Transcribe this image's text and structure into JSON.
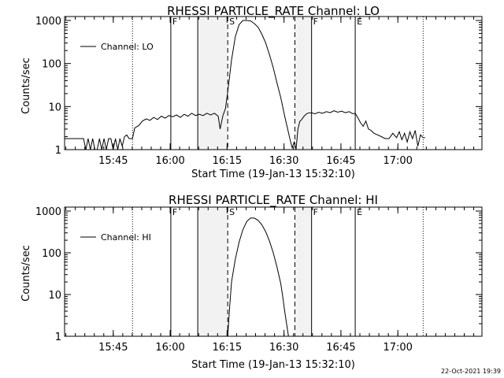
{
  "footer": {
    "timestamp": "22-Oct-2021 19:39"
  },
  "chart_data": [
    {
      "type": "line",
      "title": "RHESSI PARTICLE_RATE Channel: LO",
      "xlabel": "Start Time (19-Jan-13 15:32:10)",
      "ylabel": "Counts/sec",
      "yscale": "log",
      "ylim": [
        1,
        1000
      ],
      "xlim_min": [
        0,
        110
      ],
      "x_unit": "minutes after 15:32:10",
      "grid": false,
      "legend_position": "top-left",
      "x_ticks": [
        {
          "label": "15:45",
          "at": 12.833
        },
        {
          "label": "16:00",
          "at": 27.833
        },
        {
          "label": "16:15",
          "at": 42.833
        },
        {
          "label": "16:30",
          "at": 57.833
        },
        {
          "label": "16:45",
          "at": 72.833
        },
        {
          "label": "17:00",
          "at": 87.833
        }
      ],
      "y_ticks": [
        {
          "label": "1",
          "at": 1
        },
        {
          "label": "10",
          "at": 10
        },
        {
          "label": "100",
          "at": 100
        },
        {
          "label": "1000",
          "at": 1000
        }
      ],
      "markers": [
        {
          "at": 17.9,
          "style": "dotted",
          "label": ""
        },
        {
          "at": 28.0,
          "style": "solid",
          "label": "F"
        },
        {
          "at": 35.1,
          "style": "solid",
          "label": ""
        },
        {
          "at": 43.0,
          "style": "dashed",
          "label": "S"
        },
        {
          "at": 60.7,
          "style": "dashed",
          "label": ""
        },
        {
          "at": 65.1,
          "style": "solid",
          "label": "F"
        },
        {
          "at": 76.6,
          "style": "solid",
          "label": "E"
        },
        {
          "at": 94.5,
          "style": "dotted",
          "label": ""
        }
      ],
      "series": [
        {
          "name": "Channel: LO",
          "x": [
            0,
            5,
            5.6,
            6.2,
            6.8,
            7.4,
            8.0,
            8.6,
            9.2,
            9.8,
            10.4,
            11.0,
            11.6,
            12.2,
            12.8,
            13.4,
            14.0,
            14.6,
            15.2,
            15.8,
            16.4,
            17.0,
            17.9,
            18.5,
            19.5,
            20.5,
            21.5,
            22.5,
            23.5,
            24.5,
            25.5,
            26.5,
            27.5,
            28.5,
            29.5,
            30.5,
            31.5,
            32.5,
            33.5,
            34.5,
            35.5,
            36.5,
            37.5,
            38.5,
            39.5,
            40.5,
            41.0,
            41.7,
            42.4,
            43.0,
            44.0,
            45.0,
            46.0,
            47.0,
            48.0,
            49.0,
            50.0,
            51.0,
            52.0,
            53.0,
            54.0,
            55.0,
            56.0,
            57.0,
            58.0,
            59.0,
            59.5,
            60.0,
            60.5,
            61.0,
            61.5,
            62.0,
            62.5,
            63.0,
            63.5,
            64.0,
            65.0,
            66.0,
            67.0,
            68.0,
            69.0,
            70.0,
            71.0,
            72.0,
            73.0,
            74.0,
            75.0,
            76.0,
            76.6,
            77.3,
            78.0,
            78.7,
            79.4,
            80.1,
            80.8,
            81.5,
            82.5,
            83.5,
            84.5,
            85.5,
            86.5,
            87.5,
            88.2,
            88.9,
            89.6,
            90.3,
            91.0,
            91.7,
            92.4,
            93.1,
            93.8,
            94.5,
            95.0
          ],
          "y": [
            1.8,
            1.8,
            1.0,
            1.8,
            1.0,
            1.8,
            1.0,
            1.0,
            1.8,
            1.0,
            1.8,
            1.0,
            1.8,
            1.8,
            1.0,
            1.8,
            1.0,
            1.8,
            1.2,
            2.0,
            2.2,
            1.8,
            1.8,
            3.2,
            3.6,
            4.6,
            5.2,
            4.8,
            5.6,
            5.0,
            6.0,
            5.4,
            6.2,
            5.8,
            6.4,
            5.6,
            6.6,
            6.0,
            7.0,
            6.2,
            6.6,
            6.2,
            7.0,
            6.4,
            7.0,
            6.0,
            3.0,
            6.0,
            9.0,
            22,
            120,
            420,
            800,
            1000,
            1000,
            980,
            850,
            700,
            480,
            300,
            160,
            80,
            35,
            16,
            6,
            2.5,
            1.6,
            1.1,
            1.5,
            1.0,
            3.0,
            4.5,
            5.0,
            5.8,
            6.5,
            7.0,
            7.2,
            6.8,
            7.4,
            7.0,
            7.6,
            7.2,
            8.0,
            7.4,
            7.8,
            7.2,
            7.6,
            6.8,
            7.0,
            5.5,
            4.2,
            3.5,
            4.6,
            3.0,
            2.8,
            2.4,
            2.2,
            2.0,
            1.8,
            1.8,
            2.4,
            1.9,
            2.6,
            1.7,
            2.4,
            1.5,
            2.6,
            1.8,
            2.8,
            1.2,
            2.2,
            1.9,
            1.9
          ]
        }
      ]
    },
    {
      "type": "line",
      "title": "RHESSI PARTICLE_RATE Channel: HI",
      "xlabel": "Start Time (19-Jan-13 15:32:10)",
      "ylabel": "Counts/sec",
      "yscale": "log",
      "ylim": [
        1,
        1000
      ],
      "xlim_min": [
        0,
        110
      ],
      "x_unit": "minutes after 15:32:10",
      "grid": false,
      "legend_position": "top-left",
      "x_ticks": [
        {
          "label": "15:45",
          "at": 12.833
        },
        {
          "label": "16:00",
          "at": 27.833
        },
        {
          "label": "16:15",
          "at": 42.833
        },
        {
          "label": "16:30",
          "at": 57.833
        },
        {
          "label": "16:45",
          "at": 72.833
        },
        {
          "label": "17:00",
          "at": 87.833
        }
      ],
      "y_ticks": [
        {
          "label": "1",
          "at": 1
        },
        {
          "label": "10",
          "at": 10
        },
        {
          "label": "100",
          "at": 100
        },
        {
          "label": "1000",
          "at": 1000
        }
      ],
      "markers": [
        {
          "at": 17.9,
          "style": "dotted",
          "label": ""
        },
        {
          "at": 28.0,
          "style": "solid",
          "label": "F"
        },
        {
          "at": 35.1,
          "style": "solid",
          "label": ""
        },
        {
          "at": 43.0,
          "style": "dashed",
          "label": "S"
        },
        {
          "at": 60.7,
          "style": "dashed",
          "label": ""
        },
        {
          "at": 65.1,
          "style": "solid",
          "label": "F"
        },
        {
          "at": 76.6,
          "style": "solid",
          "label": "E"
        },
        {
          "at": 94.5,
          "style": "dotted",
          "label": ""
        }
      ],
      "series": [
        {
          "name": "Channel: HI",
          "x": [
            43.0,
            43.5,
            44.0,
            45.0,
            46.0,
            47.0,
            48.0,
            49.0,
            50.0,
            51.0,
            52.0,
            53.0,
            54.0,
            55.0,
            56.0,
            57.0,
            57.5,
            58.0,
            58.5,
            59.0
          ],
          "y": [
            1.0,
            5,
            20,
            70,
            180,
            360,
            560,
            680,
            680,
            600,
            470,
            320,
            190,
            100,
            45,
            18,
            9,
            4,
            2,
            1.0
          ]
        }
      ]
    }
  ]
}
